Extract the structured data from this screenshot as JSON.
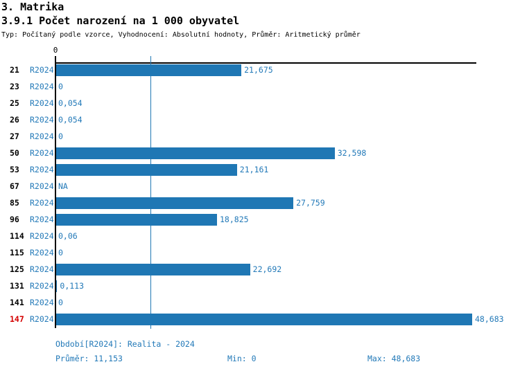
{
  "header": {
    "title": "3. Matrika",
    "subtitle": "3.9.1 Počet narození na 1 000 obyvatel",
    "meta": "Typ: Počítaný podle vzorce, Vyhodnocení: Absolutní hodnoty, Průměr: Aritmetický průměr"
  },
  "chart_data": {
    "type": "bar",
    "orientation": "horizontal",
    "axis_zero_label": "0",
    "period_label": "R2024",
    "categories": [
      "21",
      "23",
      "25",
      "26",
      "27",
      "50",
      "53",
      "67",
      "85",
      "96",
      "114",
      "115",
      "125",
      "131",
      "141",
      "147"
    ],
    "values": [
      21.675,
      0,
      0.054,
      0.054,
      0,
      32.598,
      21.161,
      null,
      27.759,
      18.825,
      0.06,
      0,
      22.692,
      0.113,
      0,
      48.683
    ],
    "value_labels": [
      "21,675",
      "0",
      "0,054",
      "0,054",
      "0",
      "32,598",
      "21,161",
      "NA",
      "27,759",
      "18,825",
      "0,06",
      "0",
      "22,692",
      "0,113",
      "0",
      "48,683"
    ],
    "highlighted_category": "147",
    "average": 11.153,
    "xlim": [
      0,
      48.683
    ],
    "grid": false,
    "legend": false,
    "colors": {
      "bar": "#1f77b4",
      "blue_text": "#2279b8",
      "average_line": "#1f77b4",
      "highlight_text": "#d40000",
      "axis": "#000000"
    }
  },
  "footer": {
    "period": "Období[R2024]: Realita - 2024",
    "average": "Průměr: 11,153",
    "min": "Min: 0",
    "max": "Max: 48,683"
  }
}
